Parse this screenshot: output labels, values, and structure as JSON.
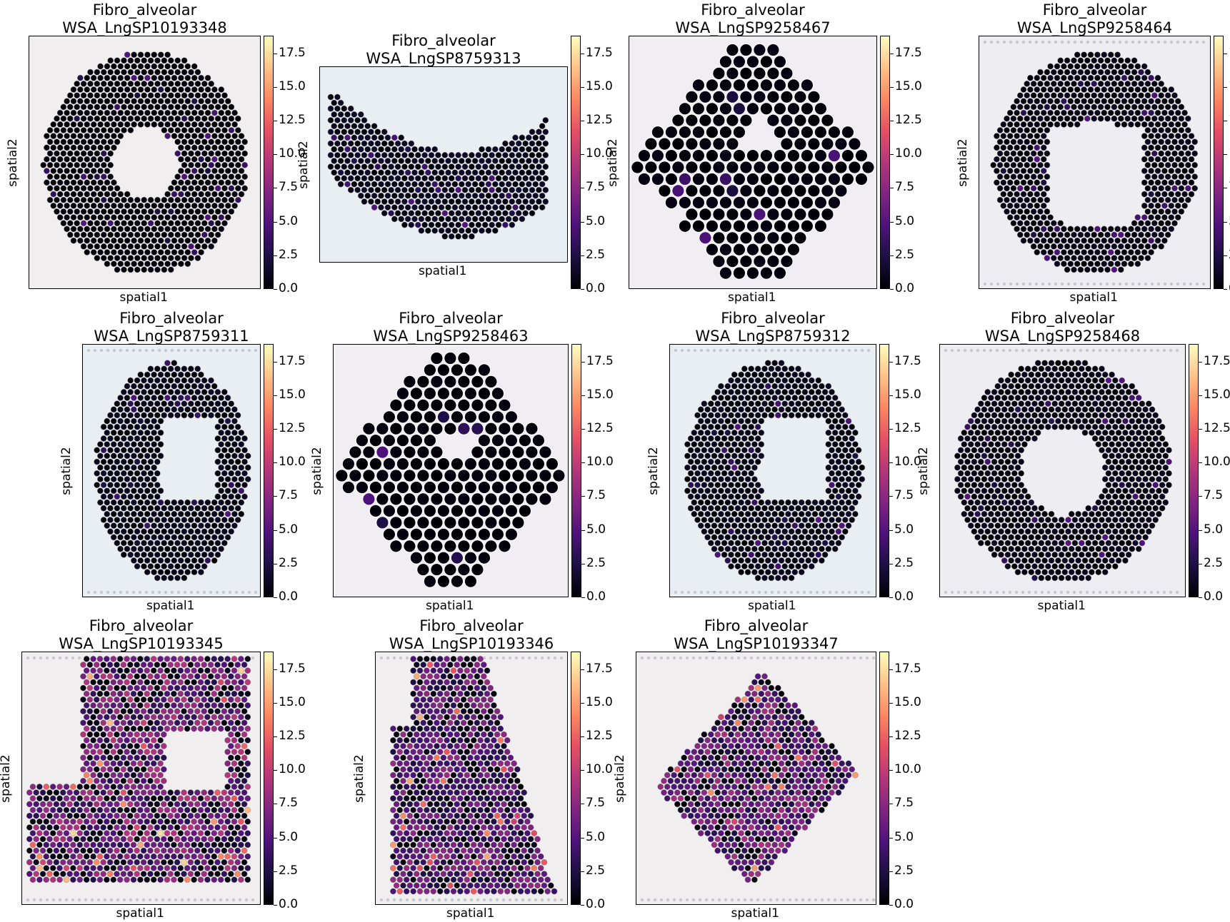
{
  "chart_data": {
    "type": "spatial-scatter",
    "layout": {
      "rows": 3,
      "cols": 4
    },
    "xlabel": "spatial1",
    "ylabel": "spatial2",
    "colormap": "magma",
    "colorbar": {
      "min": 0.0,
      "max": 18.8,
      "ticks": [
        "0.0",
        "2.5",
        "5.0",
        "7.5",
        "10.0",
        "12.5",
        "15.0",
        "17.5"
      ]
    },
    "panels": [
      {
        "title": "Fibro_alveolar",
        "sample": "WSA_LngSP10193348",
        "shape": "ring",
        "spot": "small",
        "tissue_bg": "#f0eeee",
        "mean_value": 0.3
      },
      {
        "title": "Fibro_alveolar",
        "sample": "WSA_LngSP8759313",
        "shape": "band",
        "spot": "small",
        "tissue_bg": "#e8eef2",
        "mean_value": 1.0
      },
      {
        "title": "Fibro_alveolar",
        "sample": "WSA_LngSP9258467",
        "shape": "blob",
        "spot": "large",
        "tissue_bg": "#f1eef3",
        "mean_value": 0.4
      },
      {
        "title": "Fibro_alveolar",
        "sample": "WSA_LngSP9258464",
        "shape": "ring",
        "spot": "small",
        "tissue_bg": "#eeedf2",
        "mean_value": 0.6
      },
      {
        "title": "Fibro_alveolar",
        "sample": "WSA_LngSP8759311",
        "shape": "spiral",
        "spot": "small",
        "tissue_bg": "#e8eef2",
        "mean_value": 0.8
      },
      {
        "title": "Fibro_alveolar",
        "sample": "WSA_LngSP9258463",
        "shape": "blob",
        "spot": "large",
        "tissue_bg": "#f1eef3",
        "mean_value": 0.3
      },
      {
        "title": "Fibro_alveolar",
        "sample": "WSA_LngSP8759312",
        "shape": "spiral",
        "spot": "small",
        "tissue_bg": "#e8eef2",
        "mean_value": 0.8
      },
      {
        "title": "Fibro_alveolar",
        "sample": "WSA_LngSP9258468",
        "shape": "ring",
        "spot": "small",
        "tissue_bg": "#eeedf2",
        "mean_value": 0.7
      },
      {
        "title": "Fibro_alveolar",
        "sample": "WSA_LngSP10193345",
        "shape": "wide",
        "spot": "small",
        "tissue_bg": "#f0eeee",
        "mean_value": 6.0
      },
      {
        "title": "Fibro_alveolar",
        "sample": "WSA_LngSP10193346",
        "shape": "wedge",
        "spot": "small",
        "tissue_bg": "#f0eeee",
        "mean_value": 5.0
      },
      {
        "title": "Fibro_alveolar",
        "sample": "WSA_LngSP10193347",
        "shape": "diagonal",
        "spot": "small",
        "tissue_bg": "#f0eeee",
        "mean_value": 5.5
      }
    ]
  }
}
